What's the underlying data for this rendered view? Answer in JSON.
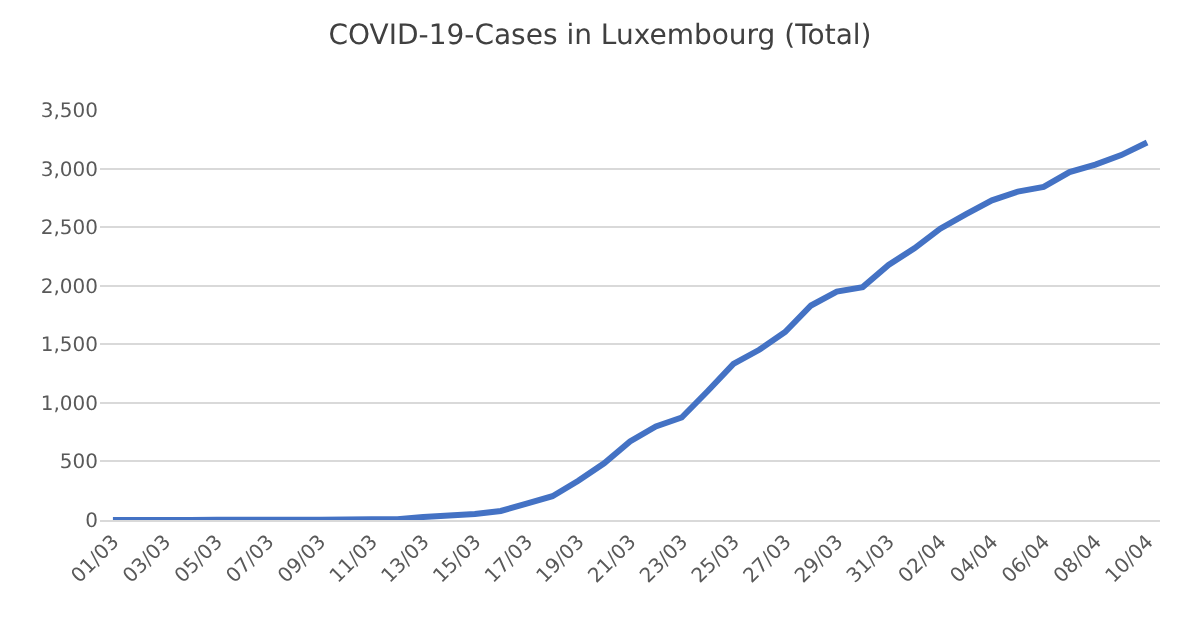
{
  "chart_data": {
    "type": "line",
    "title": "COVID-19-Cases in Luxembourg (Total)",
    "categories": [
      "01/03",
      null,
      "03/03",
      null,
      "05/03",
      null,
      "07/03",
      null,
      "09/03",
      null,
      "11/03",
      null,
      "13/03",
      null,
      "15/03",
      null,
      "17/03",
      null,
      "19/03",
      null,
      "21/03",
      null,
      "23/03",
      null,
      "25/03",
      null,
      "27/03",
      null,
      "29/03",
      null,
      "31/03",
      null,
      "02/04",
      null,
      "04/04",
      null,
      "06/04",
      null,
      "08/04",
      null,
      "10/04"
    ],
    "series": [
      {
        "color": "#4472c4",
        "values": [
          1,
          1,
          1,
          1,
          2,
          2,
          3,
          3,
          3,
          5,
          7,
          7,
          26,
          38,
          51,
          77,
          140,
          203,
          335,
          484,
          670,
          798,
          875,
          1099,
          1333,
          1453,
          1605,
          1831,
          1950,
          1988,
          2178,
          2319,
          2487,
          2612,
          2729,
          2804,
          2843,
          2970,
          3034,
          3115,
          3223
        ]
      }
    ],
    "ylim": [
      0,
      3500
    ],
    "yticks": [
      {
        "value": 0,
        "label": "0"
      },
      {
        "value": 500,
        "label": "500"
      },
      {
        "value": 1000,
        "label": "1,000"
      },
      {
        "value": 1500,
        "label": "1,500"
      },
      {
        "value": 2000,
        "label": "2,000"
      },
      {
        "value": 2500,
        "label": "2,500"
      },
      {
        "value": 3000,
        "label": "3,000"
      },
      {
        "value": 3500,
        "label": "3,500"
      }
    ],
    "grid": "y",
    "legend": false,
    "marker": "none",
    "line_style": "solid"
  }
}
